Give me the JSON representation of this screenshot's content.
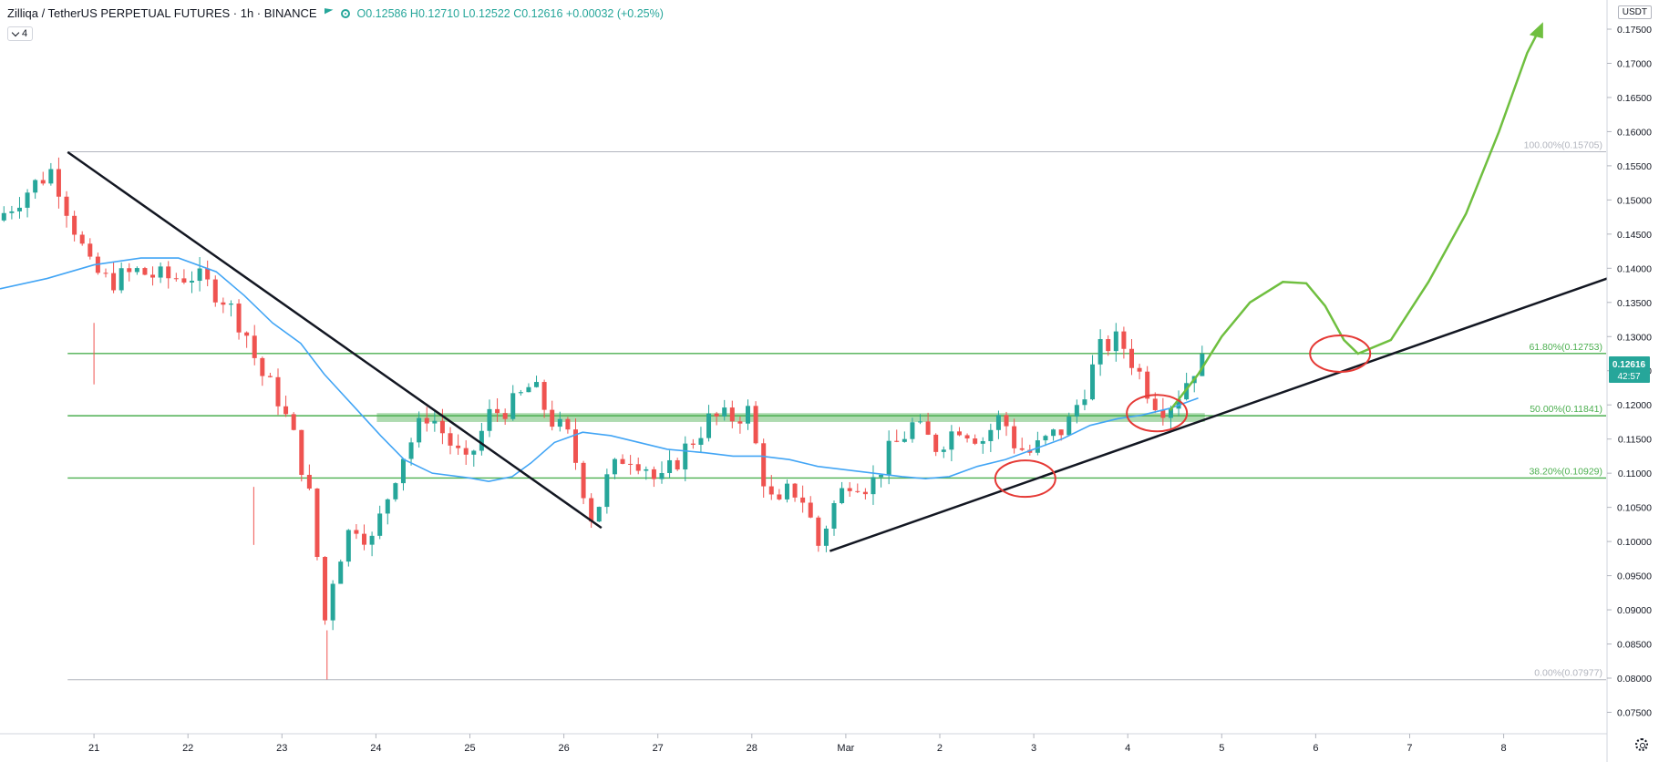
{
  "header": {
    "symbol": "Zilliqa / TetherUS PERPETUAL FUTURES · 1h · BINANCE",
    "ohlc": "O0.12586 H0.12710 L0.12522 C0.12616 +0.00032 (+0.25%)",
    "flag_icon": "flag-icon",
    "eye_icon": "eye-icon",
    "indicator_count": "4"
  },
  "currency": "USDT",
  "price_tag": {
    "price": "0.12616",
    "countdown": "42:57"
  },
  "colors": {
    "up": "#26a69a",
    "down": "#ef5350",
    "ma": "#42a5f5",
    "fib": "#4caf50",
    "trend": "#131722",
    "projection": "#6fbf3f",
    "circle": "#e53935",
    "zone": "#4caf50"
  },
  "chart_data": {
    "type": "candlestick",
    "xaxis_labels": [
      "21",
      "22",
      "23",
      "24",
      "25",
      "26",
      "27",
      "28",
      "Mar",
      "2",
      "3",
      "4",
      "5",
      "6",
      "7",
      "8"
    ],
    "yaxis_labels": [
      "0.07500",
      "0.08000",
      "0.08500",
      "0.09000",
      "0.09500",
      "0.10000",
      "0.10500",
      "0.11000",
      "0.11500",
      "0.12000",
      "0.12500",
      "0.13000",
      "0.13500",
      "0.14000",
      "0.14500",
      "0.15000",
      "0.15500",
      "0.16000",
      "0.16500",
      "0.17000",
      "0.17500"
    ],
    "ylim": [
      0.0735,
      0.1785
    ],
    "xlim": [
      20.0,
      37.1
    ],
    "price_path": [
      [
        20.0,
        0.147
      ],
      [
        20.3,
        0.151
      ],
      [
        20.6,
        0.1545
      ],
      [
        20.75,
        0.149
      ],
      [
        21.0,
        0.14
      ],
      [
        21.2,
        0.138
      ],
      [
        21.5,
        0.1395
      ],
      [
        21.8,
        0.1385
      ],
      [
        22.1,
        0.139
      ],
      [
        22.4,
        0.136
      ],
      [
        22.65,
        0.131
      ],
      [
        22.8,
        0.125
      ],
      [
        23.0,
        0.121
      ],
      [
        23.2,
        0.114
      ],
      [
        23.38,
        0.104
      ],
      [
        23.48,
        0.087
      ],
      [
        23.6,
        0.096
      ],
      [
        23.8,
        0.103
      ],
      [
        24.0,
        0.1
      ],
      [
        24.1,
        0.104
      ],
      [
        24.3,
        0.112
      ],
      [
        24.6,
        0.119
      ],
      [
        24.8,
        0.115
      ],
      [
        25.0,
        0.111
      ],
      [
        25.25,
        0.1185
      ],
      [
        25.5,
        0.12
      ],
      [
        25.7,
        0.123
      ],
      [
        25.9,
        0.118
      ],
      [
        26.1,
        0.115
      ],
      [
        26.35,
        0.103
      ],
      [
        26.5,
        0.109
      ],
      [
        26.7,
        0.113
      ],
      [
        26.9,
        0.1115
      ],
      [
        27.05,
        0.108
      ],
      [
        27.3,
        0.113
      ],
      [
        27.6,
        0.118
      ],
      [
        27.8,
        0.118
      ],
      [
        28.0,
        0.119
      ],
      [
        28.15,
        0.11
      ],
      [
        28.3,
        0.104
      ],
      [
        28.45,
        0.108
      ],
      [
        28.6,
        0.106
      ],
      [
        28.75,
        0.0995
      ],
      [
        28.9,
        0.105
      ],
      [
        29.1,
        0.1095
      ],
      [
        29.3,
        0.108
      ],
      [
        29.5,
        0.113
      ],
      [
        29.75,
        0.117
      ],
      [
        30.0,
        0.114
      ],
      [
        30.25,
        0.117
      ],
      [
        30.5,
        0.115
      ],
      [
        30.7,
        0.1185
      ],
      [
        30.85,
        0.114
      ],
      [
        31.0,
        0.113
      ],
      [
        31.2,
        0.115
      ],
      [
        31.4,
        0.117
      ],
      [
        31.6,
        0.123
      ],
      [
        31.75,
        0.128
      ],
      [
        31.9,
        0.1295
      ],
      [
        32.0,
        0.1285
      ],
      [
        32.15,
        0.125
      ],
      [
        32.3,
        0.121
      ],
      [
        32.45,
        0.1195
      ],
      [
        32.6,
        0.122
      ],
      [
        32.75,
        0.1255
      ],
      [
        32.8,
        0.1262
      ]
    ],
    "series": [
      {
        "name": "MA",
        "points": [
          [
            20.0,
            0.137
          ],
          [
            20.5,
            0.1385
          ],
          [
            21.0,
            0.1405
          ],
          [
            21.5,
            0.1415
          ],
          [
            21.9,
            0.1415
          ],
          [
            22.3,
            0.1395
          ],
          [
            22.6,
            0.136
          ],
          [
            22.9,
            0.132
          ],
          [
            23.2,
            0.129
          ],
          [
            23.45,
            0.1245
          ],
          [
            23.75,
            0.12
          ],
          [
            24.05,
            0.1155
          ],
          [
            24.3,
            0.112
          ],
          [
            24.6,
            0.11
          ],
          [
            25.0,
            0.1093
          ],
          [
            25.2,
            0.1088
          ],
          [
            25.45,
            0.1095
          ],
          [
            25.65,
            0.1115
          ],
          [
            25.9,
            0.1145
          ],
          [
            26.2,
            0.116
          ],
          [
            26.5,
            0.1155
          ],
          [
            26.8,
            0.1145
          ],
          [
            27.1,
            0.1135
          ],
          [
            27.5,
            0.113
          ],
          [
            27.8,
            0.1125
          ],
          [
            28.1,
            0.1125
          ],
          [
            28.4,
            0.112
          ],
          [
            28.7,
            0.111
          ],
          [
            29.0,
            0.1105
          ],
          [
            29.3,
            0.11
          ],
          [
            29.6,
            0.1095
          ],
          [
            29.85,
            0.1092
          ],
          [
            30.1,
            0.1095
          ],
          [
            30.4,
            0.111
          ],
          [
            30.7,
            0.112
          ],
          [
            31.0,
            0.1135
          ],
          [
            31.3,
            0.115
          ],
          [
            31.6,
            0.117
          ],
          [
            31.9,
            0.118
          ],
          [
            32.15,
            0.1185
          ],
          [
            32.45,
            0.1195
          ],
          [
            32.75,
            0.121
          ]
        ]
      }
    ],
    "fib_levels": [
      {
        "label": "100.00%(0.15705)",
        "value": 0.15705
      },
      {
        "label": "61.80%(0.12753)",
        "value": 0.12753
      },
      {
        "label": "50.00%(0.11841)",
        "value": 0.11841
      },
      {
        "label": "38.20%(0.10929)",
        "value": 0.10929
      },
      {
        "label": "0.00%(0.07977)",
        "value": 0.07977
      }
    ],
    "fib_x_start": 20.72,
    "zone": {
      "x": [
        24.01,
        32.82
      ],
      "y": [
        0.1175,
        0.1188
      ]
    },
    "downtrend_line": [
      [
        20.72,
        0.157
      ],
      [
        26.4,
        0.102
      ]
    ],
    "uptrend_line": [
      [
        28.83,
        0.0986
      ],
      [
        37.1,
        0.1385
      ]
    ],
    "projection_path": [
      [
        32.45,
        0.1192
      ],
      [
        32.75,
        0.1245
      ],
      [
        33.0,
        0.13
      ],
      [
        33.3,
        0.135
      ],
      [
        33.65,
        0.138
      ],
      [
        33.9,
        0.1378
      ],
      [
        34.1,
        0.1345
      ],
      [
        34.3,
        0.1295
      ],
      [
        34.45,
        0.1275
      ],
      [
        34.8,
        0.1295
      ],
      [
        35.2,
        0.138
      ],
      [
        35.6,
        0.148
      ],
      [
        35.95,
        0.16
      ],
      [
        36.25,
        0.1715
      ],
      [
        36.4,
        0.1755
      ]
    ],
    "circles": [
      [
        30.91,
        0.1092
      ],
      [
        32.31,
        0.1188
      ],
      [
        34.26,
        0.1275
      ]
    ]
  }
}
